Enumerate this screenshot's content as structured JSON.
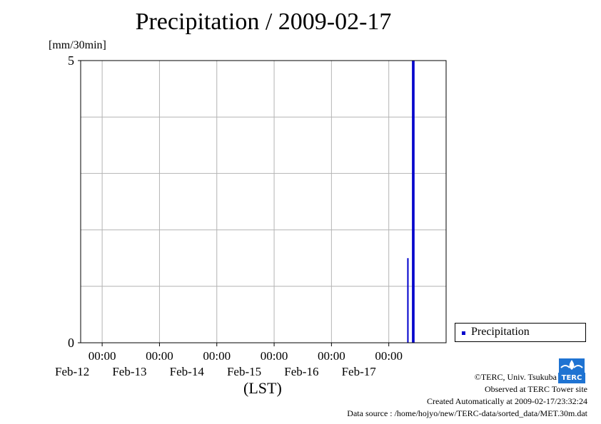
{
  "page": {
    "footer": {
      "copyright": "©TERC, Univ. Tsukuba",
      "observed": "Observed at TERC Tower site",
      "created": "Created Automatically at 2009-02-17/23:32:24",
      "source": "Data source : /home/hojyo/new/TERC-data/sorted_data/MET.30m.dat"
    },
    "logo": {
      "text": "TERC",
      "color": "#1e73d2"
    }
  },
  "chart_data": {
    "type": "bar",
    "title": "Precipitation / 2009-02-17",
    "ylabel": "[mm/30min]",
    "xlabel": "(LST)",
    "ylim": [
      0,
      5
    ],
    "y_ticks": [
      {
        "value": 0,
        "label": "0"
      },
      {
        "value": 5,
        "label": "5"
      }
    ],
    "y_gridlines": [
      1,
      2,
      3,
      4
    ],
    "xlim": [
      "2009-02-11 15:00",
      "2009-02-18 00:00"
    ],
    "x_ticks": [
      {
        "time": "2009-02-12 00:00",
        "label": "00:00",
        "date": "Feb-12"
      },
      {
        "time": "2009-02-13 00:00",
        "label": "00:00",
        "date": "Feb-13"
      },
      {
        "time": "2009-02-14 00:00",
        "label": "00:00",
        "date": "Feb-14"
      },
      {
        "time": "2009-02-15 00:00",
        "label": "00:00",
        "date": "Feb-15"
      },
      {
        "time": "2009-02-16 00:00",
        "label": "00:00",
        "date": "Feb-16"
      },
      {
        "time": "2009-02-17 00:00",
        "label": "00:00",
        "date": "Feb-17"
      }
    ],
    "grid": true,
    "legend_position": "right",
    "series": [
      {
        "name": "Precipitation",
        "color": "#0000cc",
        "points": [
          {
            "time": "2009-02-17 08:00",
            "value": 1.5
          },
          {
            "time": "2009-02-17 10:00",
            "value": 5.0
          },
          {
            "time": "2009-02-17 10:30",
            "value": 5.0
          }
        ]
      }
    ]
  }
}
